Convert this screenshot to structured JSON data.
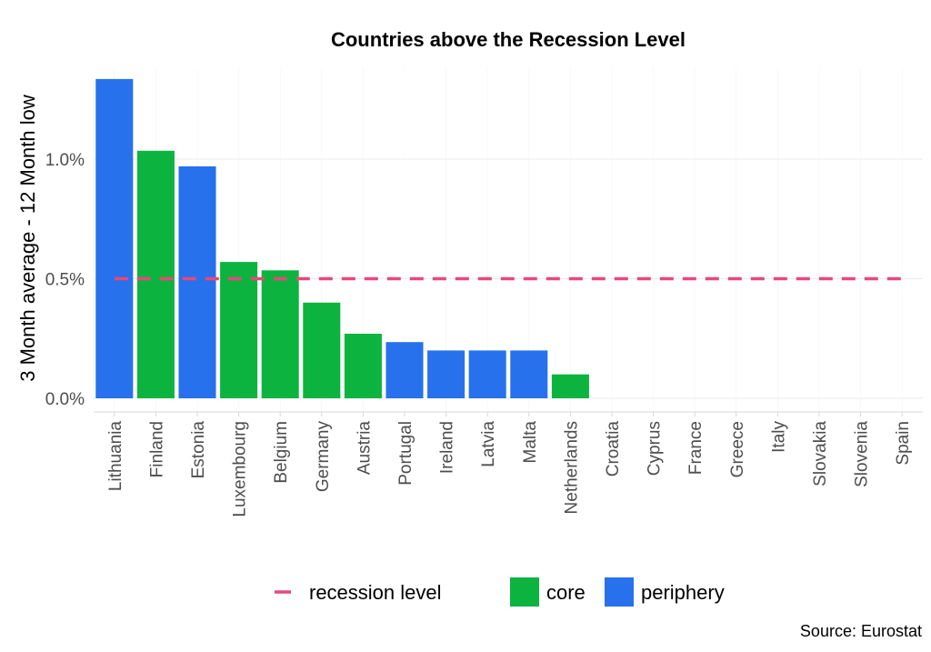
{
  "chart_data": {
    "type": "bar",
    "title": "Countries above the Recession Level",
    "xlabel": "",
    "ylabel": "3 Month average - 12 Month low",
    "ylim": [
      -0.06,
      1.38
    ],
    "yticks": [
      0.0,
      0.5,
      1.0
    ],
    "ytick_labels": [
      "0.0%",
      "0.5%",
      "1.0%"
    ],
    "categories": [
      "Lithuania",
      "Finland",
      "Estonia",
      "Luxembourg",
      "Belgium",
      "Germany",
      "Austria",
      "Portugal",
      "Ireland",
      "Latvia",
      "Malta",
      "Netherlands",
      "Croatia",
      "Cyprus",
      "France",
      "Greece",
      "Italy",
      "Slovakia",
      "Slovenia",
      "Spain"
    ],
    "values": [
      1.335,
      1.035,
      0.97,
      0.57,
      0.535,
      0.4,
      0.27,
      0.235,
      0.2,
      0.2,
      0.2,
      0.1,
      0,
      0,
      0,
      0,
      0,
      0,
      0,
      0
    ],
    "groups": [
      "periphery",
      "core",
      "periphery",
      "core",
      "core",
      "core",
      "core",
      "periphery",
      "periphery",
      "periphery",
      "periphery",
      "core",
      "core",
      "periphery",
      "core",
      "periphery",
      "periphery",
      "periphery",
      "periphery",
      "periphery"
    ],
    "recession_level": 0.5,
    "grid": true,
    "legend": {
      "placement": "bottom",
      "entries": [
        {
          "label": "recession level",
          "color": "#e8487a",
          "kind": "dash"
        },
        {
          "label": "core",
          "color": "#0cb43f",
          "kind": "box"
        },
        {
          "label": "periphery",
          "color": "#2771ed",
          "kind": "box"
        }
      ]
    },
    "colors": {
      "core": "#0cb43f",
      "periphery": "#2771ed",
      "recession": "#e8487a"
    },
    "caption": "Source: Eurostat"
  }
}
